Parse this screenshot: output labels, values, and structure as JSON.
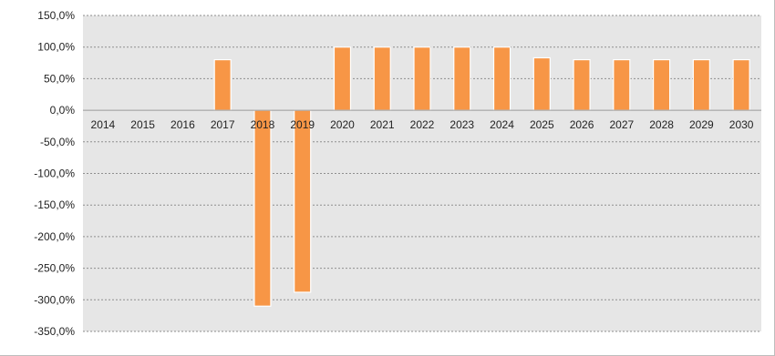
{
  "chart_data": {
    "type": "bar",
    "title": "",
    "xlabel": "",
    "ylabel": "",
    "categories": [
      "2014",
      "2015",
      "2016",
      "2017",
      "2018",
      "2019",
      "2020",
      "2021",
      "2022",
      "2023",
      "2024",
      "2025",
      "2026",
      "2027",
      "2028",
      "2029",
      "2030"
    ],
    "values": [
      null,
      null,
      null,
      80,
      -310,
      -288,
      100,
      100,
      100,
      100,
      100,
      83,
      80,
      80,
      80,
      80,
      80
    ],
    "ylim": [
      -350,
      150
    ],
    "yticks": [
      150,
      100,
      50,
      0,
      -50,
      -100,
      -150,
      -200,
      -250,
      -300,
      -350
    ],
    "ytick_labels": [
      "150,0%",
      "100,0%",
      "50,0%",
      "0,0%",
      "-50,0%",
      "-100,0%",
      "-150,0%",
      "-200,0%",
      "-250,0%",
      "-300,0%",
      "-350,0%"
    ],
    "grid": true,
    "bar_color": "#f79646",
    "plot_background": "#e6e6e6"
  }
}
